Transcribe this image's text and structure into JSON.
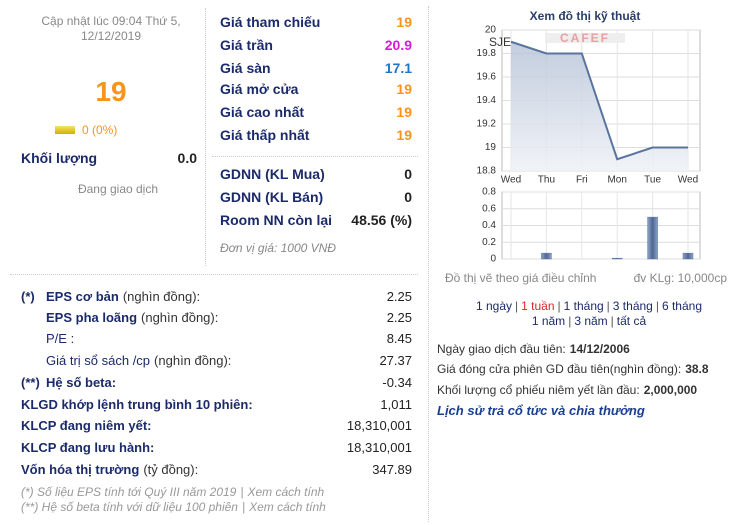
{
  "update": {
    "line1": "Cập nhật lúc 09:04 Thứ 5,",
    "line2": "12/12/2019"
  },
  "price": "19",
  "change": "0 (0%)",
  "volume": {
    "label": "Khối lượng",
    "value": "0.0"
  },
  "status": "Đang giao dịch",
  "prices": [
    {
      "label": "Giá tham chiếu",
      "value": "19",
      "color": "#f7941d"
    },
    {
      "label": "Giá trần",
      "value": "20.9",
      "color": "#d81bd8"
    },
    {
      "label": "Giá sàn",
      "value": "17.1",
      "color": "#1f77c4"
    },
    {
      "label": "Giá mở cửa",
      "value": "19",
      "color": "#f7941d"
    },
    {
      "label": "Giá cao nhất",
      "value": "19",
      "color": "#f7941d"
    },
    {
      "label": "Giá thấp nhất",
      "value": "19",
      "color": "#f7941d"
    }
  ],
  "foreign": [
    {
      "label": "GDNN (KL Mua)",
      "value": "0"
    },
    {
      "label": "GDNN (KL Bán)",
      "value": "0"
    },
    {
      "label": "Room NN còn lại",
      "value": "48.56 (%)"
    }
  ],
  "unit_note": "Đơn vị giá: 1000 VNĐ",
  "stats": [
    {
      "marker": "(*)",
      "label": "EPS cơ bản",
      "unit": "(nghìn đồng):",
      "value": "2.25"
    },
    {
      "label": "EPS pha loãng",
      "unit": "(nghìn đồng):",
      "value": "2.25"
    },
    {
      "label": "P/E :",
      "value": "8.45"
    },
    {
      "label": "Giá trị sổ sách /cp",
      "unit": "(nghìn đồng):",
      "value": "27.37"
    },
    {
      "marker": "(**)",
      "label": "Hệ số beta:",
      "value": "-0.34"
    },
    {
      "label": "KLGD khớp lệnh trung bình 10 phiên:",
      "value": "1,011"
    },
    {
      "label": "KLCP đang niêm yết:",
      "value": "18,310,001"
    },
    {
      "label": "KLCP đang lưu hành:",
      "value": "18,310,001"
    },
    {
      "label": "Vốn hóa thị trường",
      "unit": "(tỷ đồng):",
      "value": "347.89"
    }
  ],
  "footnotes": [
    {
      "text": "(*) Số liệu EPS tính tới Quý III năm 2019",
      "link": "Xem cách tính"
    },
    {
      "text": "(**) Hệ số beta tính với dữ liệu 100 phiên",
      "link": "Xem cách tính"
    }
  ],
  "separator": "|",
  "chart_panel": {
    "title": "Xem đồ thị kỹ thuật",
    "ticker": "SJE",
    "logo": "CAFEF",
    "note": "Đồ thị vẽ theo giá điều chỉnh",
    "unit": "đv KLg: 10,000cp",
    "ranges": [
      "1 ngày",
      "1 tuần",
      "1 tháng",
      "3 tháng",
      "6 tháng",
      "1 năm",
      "3 năm",
      "tất cả"
    ],
    "selected": 1
  },
  "info": [
    {
      "label": "Ngày giao dịch đầu tiên:",
      "value": "14/12/2006"
    },
    {
      "label": "Giá đóng cửa phiên GD đầu tiên(nghìn đồng):",
      "value": "38.8"
    },
    {
      "label": "Khối lượng cổ phiếu niêm yết lần đầu:",
      "value": "2,000,000"
    }
  ],
  "history_link": "Lịch sử trả cổ tức và chia thưởng",
  "chart_data": [
    {
      "type": "line",
      "categories": [
        "Wed",
        "Thu",
        "Fri",
        "Mon",
        "Tue",
        "Wed"
      ],
      "values": [
        19.9,
        19.8,
        19.8,
        18.9,
        19.0,
        19.0
      ],
      "color": "#5a74a0",
      "ylim": [
        18.8,
        20
      ],
      "yticks": [
        18.8,
        19,
        19.2,
        19.4,
        19.6,
        19.8,
        20
      ],
      "grid": true
    },
    {
      "type": "bar",
      "categories": [
        "Wed",
        "Thu",
        "Fri",
        "Mon",
        "Tue",
        "Wed"
      ],
      "values": [
        0,
        0.07,
        0,
        0.01,
        0.5,
        0.07
      ],
      "color": "#5a74a0",
      "ylim": [
        0,
        0.8
      ],
      "yticks": [
        0,
        0.2,
        0.4,
        0.6,
        0.8
      ],
      "grid": true
    }
  ]
}
